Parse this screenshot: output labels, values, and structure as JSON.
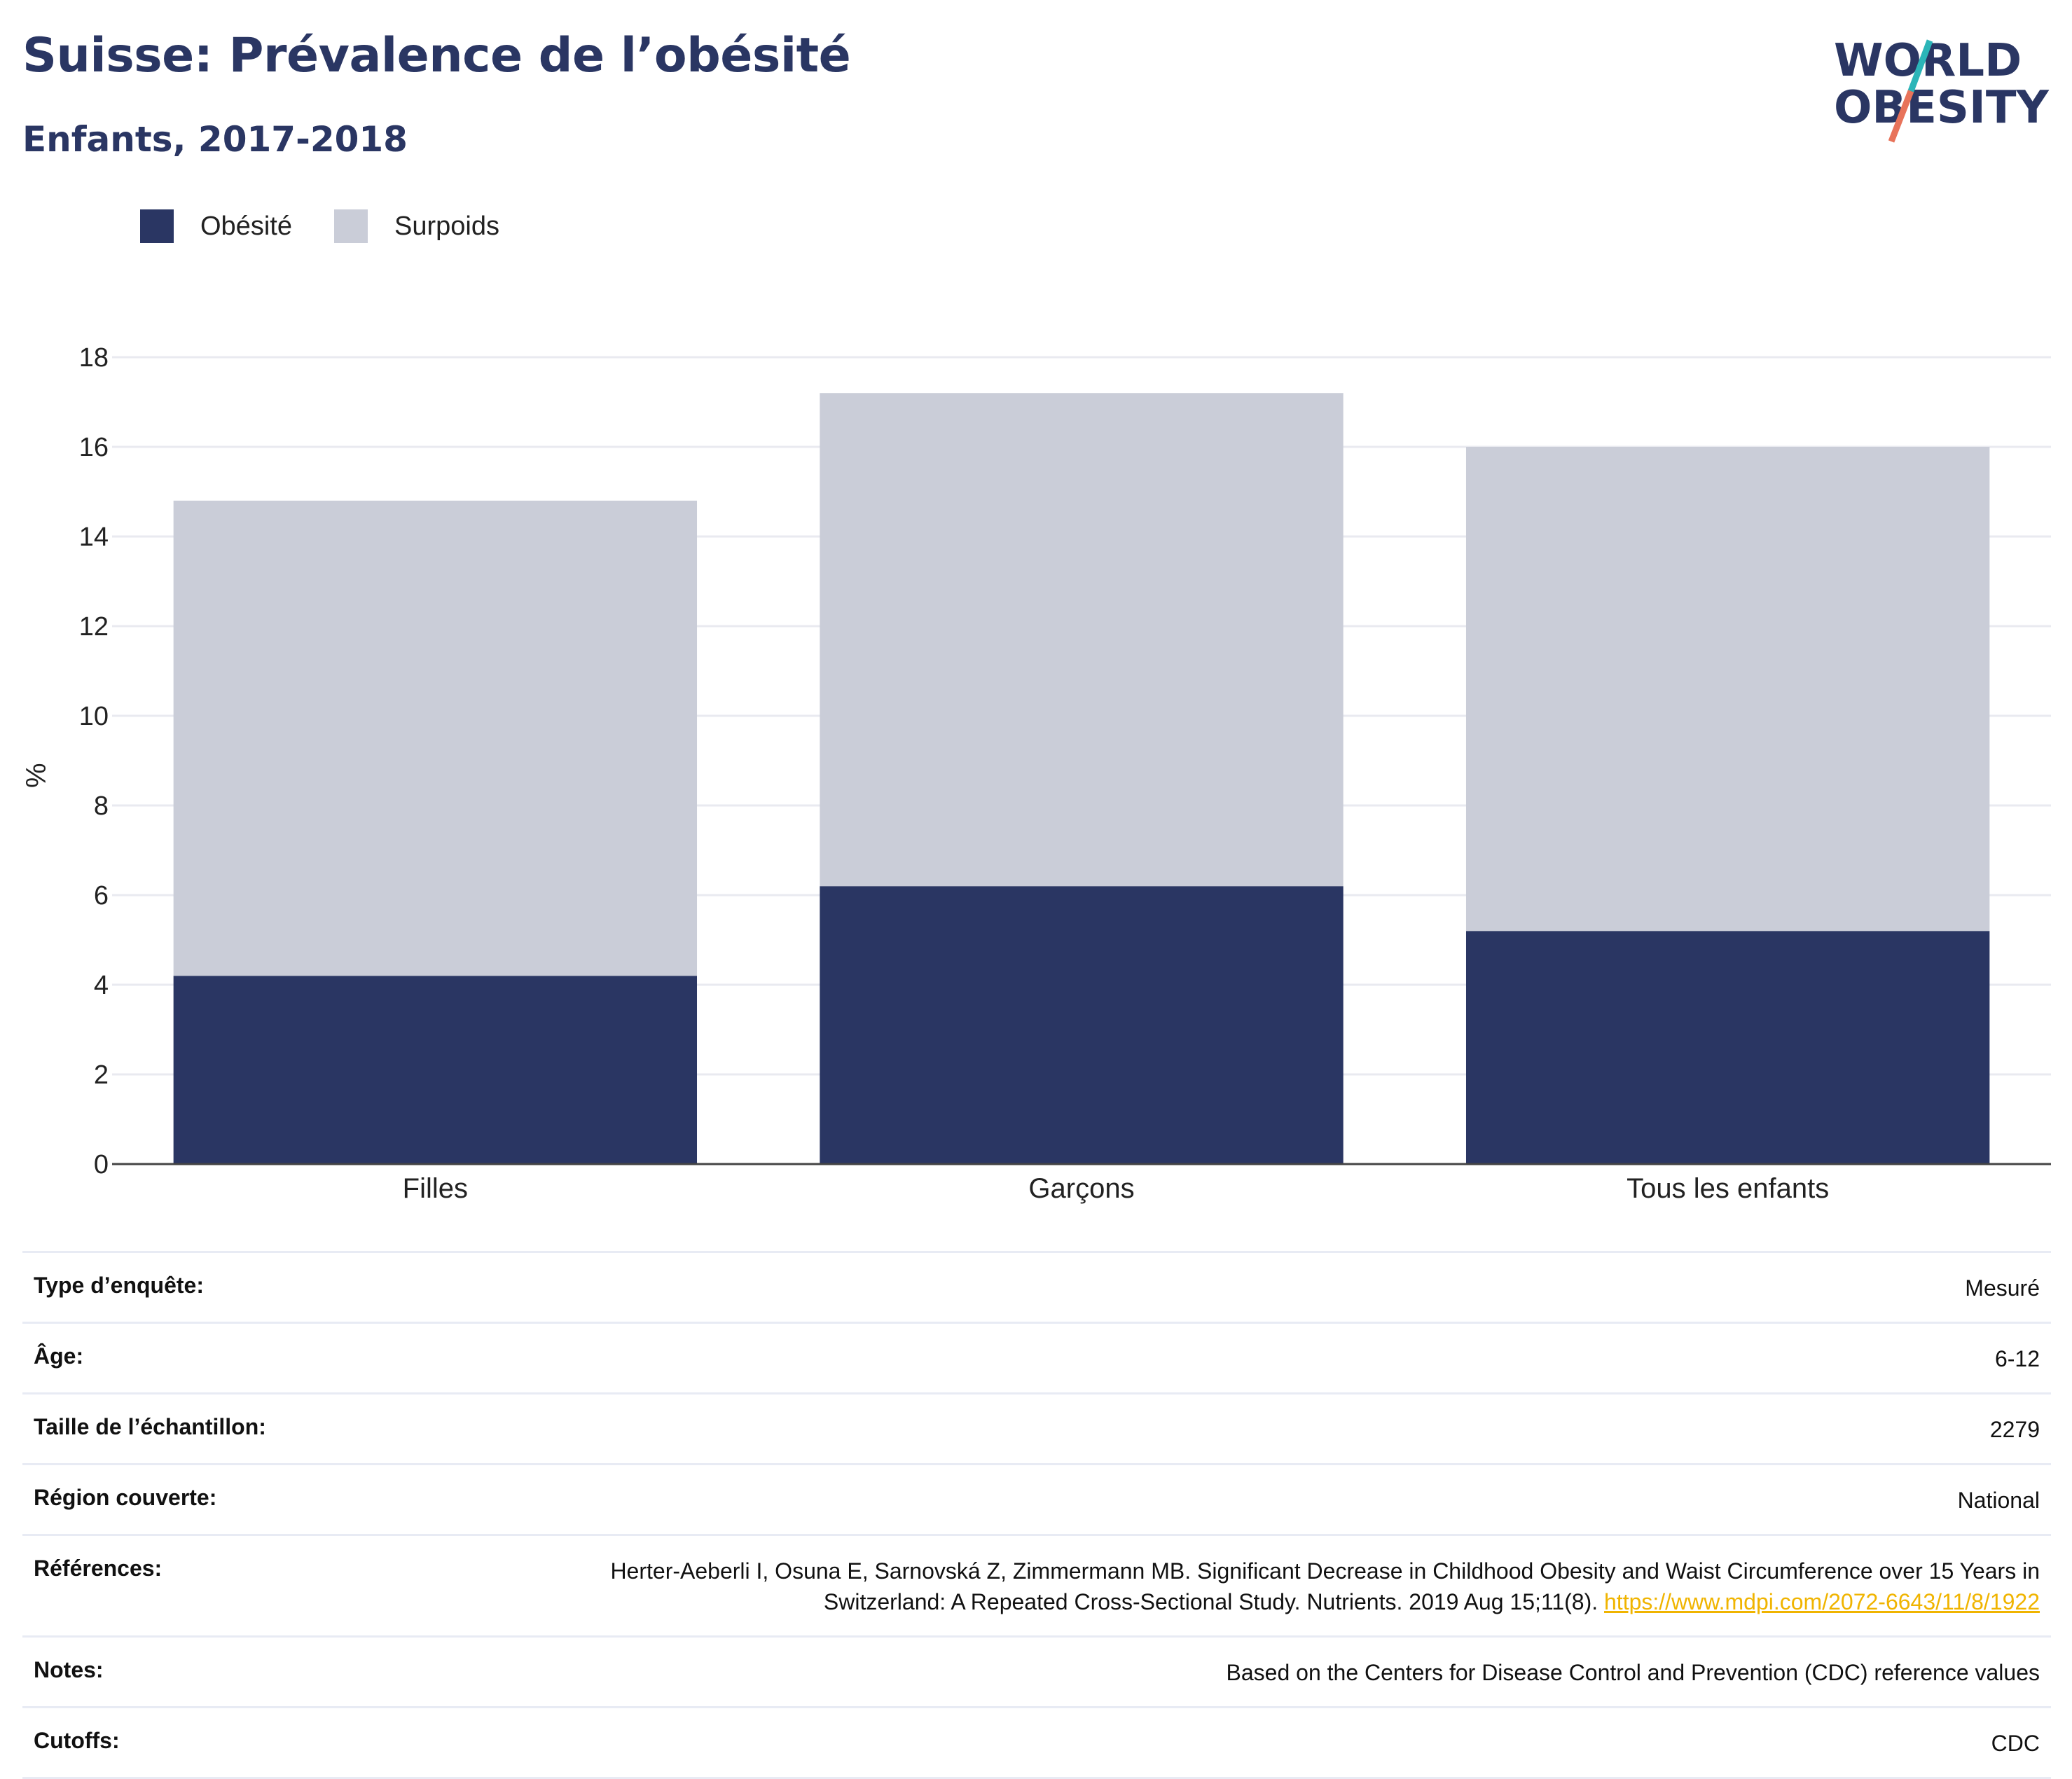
{
  "header": {
    "title": "Suisse: Prévalence de l’obésité",
    "subtitle": "Enfants, 2017-2018"
  },
  "logo": {
    "line1": "WORLD",
    "line2": "OBESITY",
    "colors": {
      "text": "#2a3663",
      "slash_top": "#2bb5b8",
      "slash_bottom": "#e8735a"
    }
  },
  "legend": {
    "items": [
      {
        "label": "Obésité",
        "color": "#2a3663"
      },
      {
        "label": "Surpoids",
        "color": "#cacdd8"
      }
    ]
  },
  "chart_data": {
    "type": "bar",
    "stacked": true,
    "categories": [
      "Filles",
      "Garçons",
      "Tous les enfants"
    ],
    "series": [
      {
        "name": "Obésité",
        "values": [
          4.2,
          6.2,
          5.2
        ],
        "color": "#2a3663"
      },
      {
        "name": "Surpoids",
        "values": [
          10.6,
          11.0,
          10.8
        ],
        "color": "#cacdd8"
      }
    ],
    "ylabel": "%",
    "ylim": [
      0,
      18
    ],
    "yticks": [
      "0",
      "2",
      "4",
      "6",
      "8",
      "10",
      "12",
      "14",
      "16",
      "18"
    ],
    "grid": true,
    "legend_position": "top-left"
  },
  "meta": {
    "rows": [
      {
        "key": "Type d’enquête:",
        "value": "Mesuré"
      },
      {
        "key": "Âge:",
        "value": "6-12"
      },
      {
        "key": "Taille de l’échantillon:",
        "value": "2279"
      },
      {
        "key": "Région couverte:",
        "value": "National"
      },
      {
        "key": "Références:",
        "value": "Herter-Aeberli I, Osuna E, Sarnovská Z, Zimmermann MB. Significant Decrease in Childhood Obesity and Waist Circumference over 15 Years in Switzerland: A Repeated Cross-Sectional Study. Nutrients. 2019 Aug 15;11(8).",
        "link": "https://www.mdpi.com/2072-6643/11/8/1922"
      },
      {
        "key": "Notes:",
        "value": "Based on the Centers for Disease Control and Prevention (CDC) reference values"
      },
      {
        "key": "Cutoffs:",
        "value": "CDC"
      }
    ]
  }
}
